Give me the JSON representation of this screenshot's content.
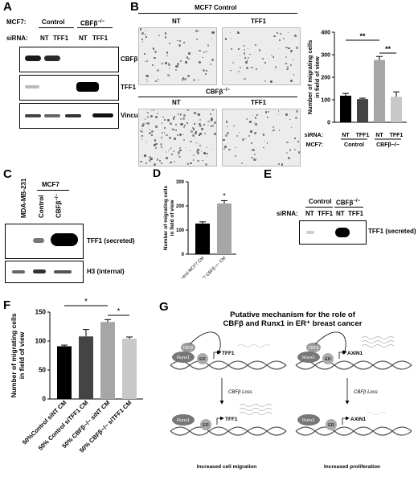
{
  "panel_A": {
    "letter": "A",
    "row_label_cell": "MCF7:",
    "row_label_sirna": "siRNA:",
    "group_control": "Control",
    "group_cbfb": "CBFβ",
    "group_cbfb_sup": "−/−",
    "lanes": [
      "NT",
      "TFF1",
      "NT",
      "TFF1"
    ],
    "blots": [
      "CBFβ",
      "TFF1",
      "Vinculin"
    ]
  },
  "panel_B": {
    "letter": "B",
    "top_header": "MCF7 Control",
    "top_labels": [
      "NT",
      "TFF1"
    ],
    "bottom_header": "CBFβ",
    "bottom_header_sup": "−/−",
    "bottom_labels": [
      "NT",
      "TFF1"
    ]
  },
  "panel_C": {
    "letter": "C",
    "lanes": [
      "MDA-MB-231",
      "Control",
      "CBFβ"
    ],
    "lane_sup": "−/−",
    "group_label": "MCF7",
    "blots": [
      "TFF1 (secreted)",
      "H3 (internal)"
    ]
  },
  "panel_E": {
    "letter": "E",
    "row_label_sirna": "siRNA:",
    "group_control": "Control",
    "group_cbfb": "CBFβ",
    "group_cbfb_sup": "−/−",
    "lanes": [
      "NT",
      "TFF1",
      "NT",
      "TFF1"
    ],
    "blot": "TFF1 (secreted)"
  },
  "panel_G": {
    "letter": "G",
    "title_line1": "Putative mechanism for the role of",
    "title_line2": "CBFβ and Runx1 in ER⁺ breast cancer",
    "protein_cbfb": "CBFβ",
    "protein_runx1": "Runx1",
    "protein_er": "ER",
    "gene_left": "TFF1",
    "gene_right": "AXIN1",
    "loss_label": "CBFβ Loss",
    "outcome_left": "Increased cell migration",
    "outcome_right": "Increased proliferation"
  },
  "chart_data": [
    {
      "panel": "B",
      "letter": "B",
      "type": "bar",
      "ylabel_line1": "Number of migrating cells",
      "ylabel_line2": "in field of view",
      "ylim": [
        0,
        400
      ],
      "yticks": [
        0,
        100,
        200,
        300,
        400
      ],
      "row_label_sirna": "siRNA:",
      "row_label_cell": "MCF7:",
      "categories": [
        "NT",
        "TFF1",
        "NT",
        "TFF1"
      ],
      "groups": [
        "Control",
        "CBFβ−/−"
      ],
      "values": [
        118,
        103,
        277,
        113
      ],
      "errors": [
        10,
        4,
        15,
        22
      ],
      "colors": [
        "#000000",
        "#444444",
        "#a6a6a6",
        "#c8c8c8"
      ],
      "significance": [
        "**",
        "**"
      ]
    },
    {
      "panel": "D",
      "letter": "D",
      "type": "bar",
      "ylabel_line1": "Number of migrating cells",
      "ylabel_line2": "in field of view",
      "ylim": [
        0,
        300
      ],
      "yticks": [
        0,
        100,
        200,
        300
      ],
      "categories": [
        "50% Control MCF7 CM",
        "50% MCF7 CBFβ−/− CM"
      ],
      "values": [
        127,
        210
      ],
      "errors": [
        7,
        12
      ],
      "colors": [
        "#000000",
        "#a6a6a6"
      ],
      "significance": [
        "*"
      ]
    },
    {
      "panel": "F",
      "letter": "F",
      "type": "bar",
      "ylabel_line1": "Number of migrating cells",
      "ylabel_line2": "in field of view",
      "ylim": [
        0,
        150
      ],
      "yticks": [
        0,
        50,
        100,
        150
      ],
      "categories": [
        "50%Control siNT CM",
        "50% Control siTFF1 CM",
        "50% CBFβ−/− siNT CM",
        "50% CBFβ−/− siTFF1 CM"
      ],
      "values": [
        91,
        108,
        133,
        104
      ],
      "errors": [
        2,
        12,
        4,
        3
      ],
      "colors": [
        "#000000",
        "#444444",
        "#a6a6a6",
        "#c8c8c8"
      ],
      "significance": [
        "*",
        "*"
      ]
    }
  ]
}
